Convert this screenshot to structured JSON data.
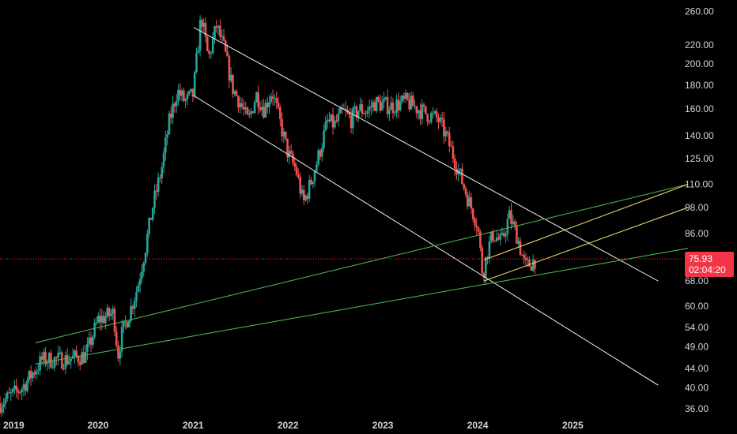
{
  "chart_data": {
    "type": "candlestick",
    "title": "",
    "xlabel": "",
    "ylabel": "",
    "y_scale": "log",
    "ylim": [
      34.5,
      275
    ],
    "xlim": [
      "2018-12-20",
      "2026-03-20"
    ],
    "grid": false,
    "y_ticks": [
      "260.00",
      "220.00",
      "200.00",
      "180.00",
      "160.00",
      "140.00",
      "125.00",
      "110.00",
      "98.00",
      "86.00",
      "76.00",
      "68.00",
      "60.00",
      "54.00",
      "49.00",
      "44.00",
      "40.00",
      "36.00"
    ],
    "x_ticks": [
      {
        "label": "2019",
        "date": "2019-01-01"
      },
      {
        "label": "2020",
        "date": "2020-01-01"
      },
      {
        "label": "2021",
        "date": "2021-01-01"
      },
      {
        "label": "2022",
        "date": "2022-01-01"
      },
      {
        "label": "2023",
        "date": "2023-01-01"
      },
      {
        "label": "2024",
        "date": "2024-01-01"
      },
      {
        "label": "2025",
        "date": "2025-01-01"
      }
    ],
    "colors": {
      "up": "#26a69a",
      "down": "#ef5350",
      "channel": "#e0e0e0",
      "fan": "#4caf50",
      "pitch": "#e8d36a",
      "price_line": "#f23645"
    },
    "current_price": {
      "price": "75.93",
      "countdown": "02:04:20",
      "value": 75.93
    },
    "price_anchors": [
      [
        "2018-12-20",
        37
      ],
      [
        "2019-03-15",
        40
      ],
      [
        "2019-06-01",
        46
      ],
      [
        "2019-09-01",
        46
      ],
      [
        "2019-11-15",
        47
      ],
      [
        "2020-01-01",
        56
      ],
      [
        "2020-03-01",
        58
      ],
      [
        "2020-03-18",
        47
      ],
      [
        "2020-04-01",
        52
      ],
      [
        "2020-05-01",
        58
      ],
      [
        "2020-06-01",
        66
      ],
      [
        "2020-07-01",
        80
      ],
      [
        "2020-08-01",
        100
      ],
      [
        "2020-09-01",
        118
      ],
      [
        "2020-10-01",
        150
      ],
      [
        "2020-11-01",
        175
      ],
      [
        "2020-12-01",
        166
      ],
      [
        "2021-01-01",
        172
      ],
      [
        "2021-02-01",
        255
      ],
      [
        "2021-03-01",
        205
      ],
      [
        "2021-04-01",
        242
      ],
      [
        "2021-05-01",
        215
      ],
      [
        "2021-06-01",
        178
      ],
      [
        "2021-07-01",
        165
      ],
      [
        "2021-08-01",
        150
      ],
      [
        "2021-09-01",
        172
      ],
      [
        "2021-10-01",
        160
      ],
      [
        "2021-11-01",
        175
      ],
      [
        "2021-12-01",
        150
      ],
      [
        "2022-01-01",
        128
      ],
      [
        "2022-02-01",
        118
      ],
      [
        "2022-03-01",
        100
      ],
      [
        "2022-04-01",
        112
      ],
      [
        "2022-05-01",
        128
      ],
      [
        "2022-06-01",
        150
      ],
      [
        "2022-07-01",
        148
      ],
      [
        "2022-08-01",
        158
      ],
      [
        "2022-09-01",
        152
      ],
      [
        "2022-10-01",
        160
      ],
      [
        "2022-11-01",
        158
      ],
      [
        "2022-12-01",
        165
      ],
      [
        "2023-02-01",
        162
      ],
      [
        "2023-04-01",
        166
      ],
      [
        "2023-06-01",
        158
      ],
      [
        "2023-08-01",
        152
      ],
      [
        "2023-09-01",
        140
      ],
      [
        "2023-10-01",
        126
      ],
      [
        "2023-11-01",
        112
      ],
      [
        "2023-12-01",
        100
      ],
      [
        "2024-01-01",
        90
      ],
      [
        "2024-01-20",
        70
      ],
      [
        "2024-02-10",
        80
      ],
      [
        "2024-03-01",
        86
      ],
      [
        "2024-04-01",
        82
      ],
      [
        "2024-05-01",
        94
      ],
      [
        "2024-06-01",
        85
      ],
      [
        "2024-07-01",
        73
      ],
      [
        "2024-07-20",
        74
      ],
      [
        "2024-08-12",
        76
      ]
    ],
    "drawings": [
      {
        "type": "channel-upper",
        "points": [
          [
            "2021-01-03",
            240
          ],
          [
            "2025-11-25",
            68
          ]
        ]
      },
      {
        "type": "channel-lower",
        "points": [
          [
            "2021-01-03",
            171
          ],
          [
            "2025-11-25",
            40.5
          ]
        ]
      },
      {
        "type": "fan-upper",
        "points": [
          [
            "2019-05-05",
            50
          ],
          [
            "2026-03-20",
            110
          ]
        ]
      },
      {
        "type": "fan-lower",
        "points": [
          [
            "2019-05-05",
            45
          ],
          [
            "2026-03-20",
            80
          ]
        ]
      },
      {
        "type": "pitch-upper",
        "points": [
          [
            "2024-01-25",
            75.5
          ],
          [
            "2026-03-20",
            110
          ]
        ]
      },
      {
        "type": "pitch-lower",
        "points": [
          [
            "2024-01-25",
            68
          ],
          [
            "2026-03-20",
            98
          ]
        ]
      }
    ]
  }
}
